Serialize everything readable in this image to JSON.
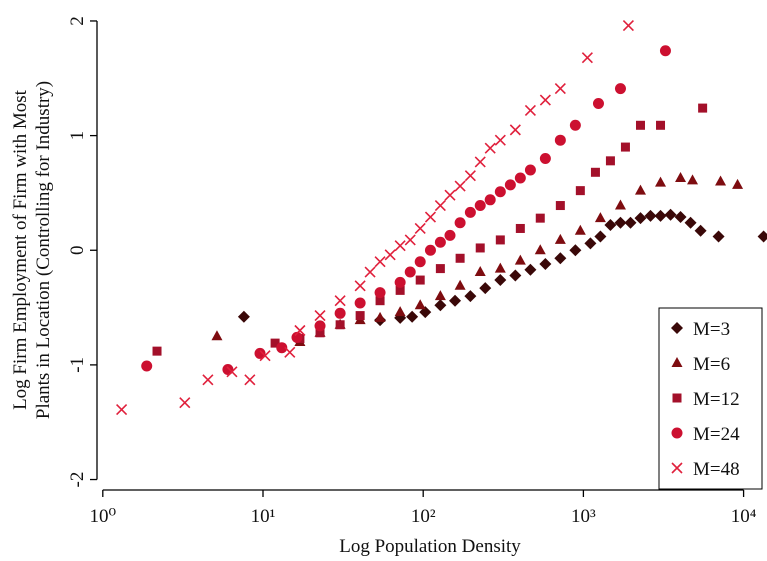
{
  "chart_data": {
    "type": "scatter",
    "xlabel": "Log Population Density",
    "ylabel": [
      "Log Firm Employment of Firm with Most",
      "Plants in Location (Controlling for Industry)"
    ],
    "xscale": "log",
    "xlim": [
      0.92,
      14000
    ],
    "ylim": [
      -2.1,
      2.1
    ],
    "xticks": [
      {
        "value": 1,
        "label": "10⁰"
      },
      {
        "value": 10,
        "label": "10¹"
      },
      {
        "value": 100,
        "label": "10²"
      },
      {
        "value": 1000,
        "label": "10³"
      },
      {
        "value": 10000,
        "label": "10⁴"
      }
    ],
    "yticks": [
      -2,
      -1,
      0,
      1,
      2
    ],
    "legend": "lower right",
    "series": [
      {
        "name": "M=3",
        "color": "#3a0808",
        "marker": "diamond",
        "x": [
          7.6,
          53.8,
          71.8,
          85.3,
          103,
          128,
          158,
          197,
          244,
          303,
          376,
          467,
          579,
          718,
          891,
          1106,
          1277,
          1475,
          1704,
          1968,
          2272,
          2624,
          3030,
          3500,
          4040,
          4667,
          5390,
          6980,
          13330
        ],
        "values": [
          -0.58,
          -0.61,
          -0.59,
          -0.58,
          -0.54,
          -0.48,
          -0.44,
          -0.4,
          -0.33,
          -0.26,
          -0.22,
          -0.17,
          -0.12,
          -0.07,
          0,
          0.06,
          0.12,
          0.22,
          0.24,
          0.24,
          0.28,
          0.3,
          0.3,
          0.31,
          0.29,
          0.24,
          0.17,
          0.12,
          0.12
        ]
      },
      {
        "name": "M=6",
        "color": "#7e0c10",
        "marker": "triangle",
        "x": [
          5.16,
          17.0,
          22.7,
          30.3,
          40.4,
          53.8,
          71.8,
          95.8,
          128,
          170,
          227,
          303,
          404,
          538,
          718,
          957,
          1277,
          1704,
          2272,
          3030,
          4040,
          4800,
          7180,
          9170
        ],
        "values": [
          -0.75,
          -0.8,
          -0.72,
          -0.65,
          -0.61,
          -0.59,
          -0.54,
          -0.48,
          -0.4,
          -0.31,
          -0.19,
          -0.16,
          -0.09,
          0,
          0.09,
          0.17,
          0.28,
          0.39,
          0.52,
          0.59,
          0.63,
          0.61,
          0.6,
          0.57
        ]
      },
      {
        "name": "M=12",
        "color": "#a3102a",
        "marker": "square",
        "x": [
          2.18,
          11.9,
          17.0,
          22.7,
          30.3,
          40.4,
          53.8,
          71.8,
          95.8,
          128,
          170,
          227,
          303,
          404,
          538,
          718,
          957,
          1189,
          1475,
          1830,
          2272,
          3030,
          5550
        ],
        "values": [
          -0.88,
          -0.81,
          -0.77,
          -0.72,
          -0.65,
          -0.57,
          -0.44,
          -0.35,
          -0.26,
          -0.16,
          -0.07,
          0.02,
          0.09,
          0.19,
          0.28,
          0.39,
          0.52,
          0.68,
          0.78,
          0.9,
          1.09,
          1.09,
          1.24
        ]
      },
      {
        "name": "M=24",
        "color": "#cc1030",
        "marker": "circle",
        "x": [
          1.88,
          6.04,
          9.58,
          13.1,
          16.3,
          22.7,
          30.3,
          40.4,
          53.8,
          71.8,
          83,
          95.8,
          111,
          128,
          147,
          170,
          197,
          227,
          262,
          303,
          350,
          404,
          467,
          579,
          718,
          891,
          1242,
          1704,
          3253
        ],
        "values": [
          -1.01,
          -1.04,
          -0.9,
          -0.85,
          -0.76,
          -0.66,
          -0.55,
          -0.46,
          -0.37,
          -0.28,
          -0.19,
          -0.1,
          0,
          0.07,
          0.13,
          0.24,
          0.33,
          0.39,
          0.44,
          0.51,
          0.57,
          0.63,
          0.7,
          0.8,
          0.96,
          1.09,
          1.28,
          1.41,
          1.74
        ]
      },
      {
        "name": "M=48",
        "color": "#e0203c",
        "marker": "cross",
        "x": [
          1.31,
          3.25,
          4.53,
          6.4,
          8.28,
          10.3,
          14.7,
          17.0,
          22.7,
          30.3,
          40.4,
          46.6,
          53.8,
          62.2,
          71.8,
          83,
          95.8,
          111,
          128,
          147,
          170,
          197,
          227,
          262,
          303,
          376,
          467,
          579,
          718,
          1059,
          1910
        ],
        "values": [
          -1.39,
          -1.33,
          -1.13,
          -1.06,
          -1.13,
          -0.92,
          -0.89,
          -0.7,
          -0.57,
          -0.44,
          -0.31,
          -0.19,
          -0.1,
          -0.04,
          0.04,
          0.09,
          0.19,
          0.29,
          0.39,
          0.48,
          0.56,
          0.65,
          0.77,
          0.89,
          0.96,
          1.05,
          1.22,
          1.31,
          1.41,
          1.68,
          1.96
        ]
      }
    ]
  }
}
